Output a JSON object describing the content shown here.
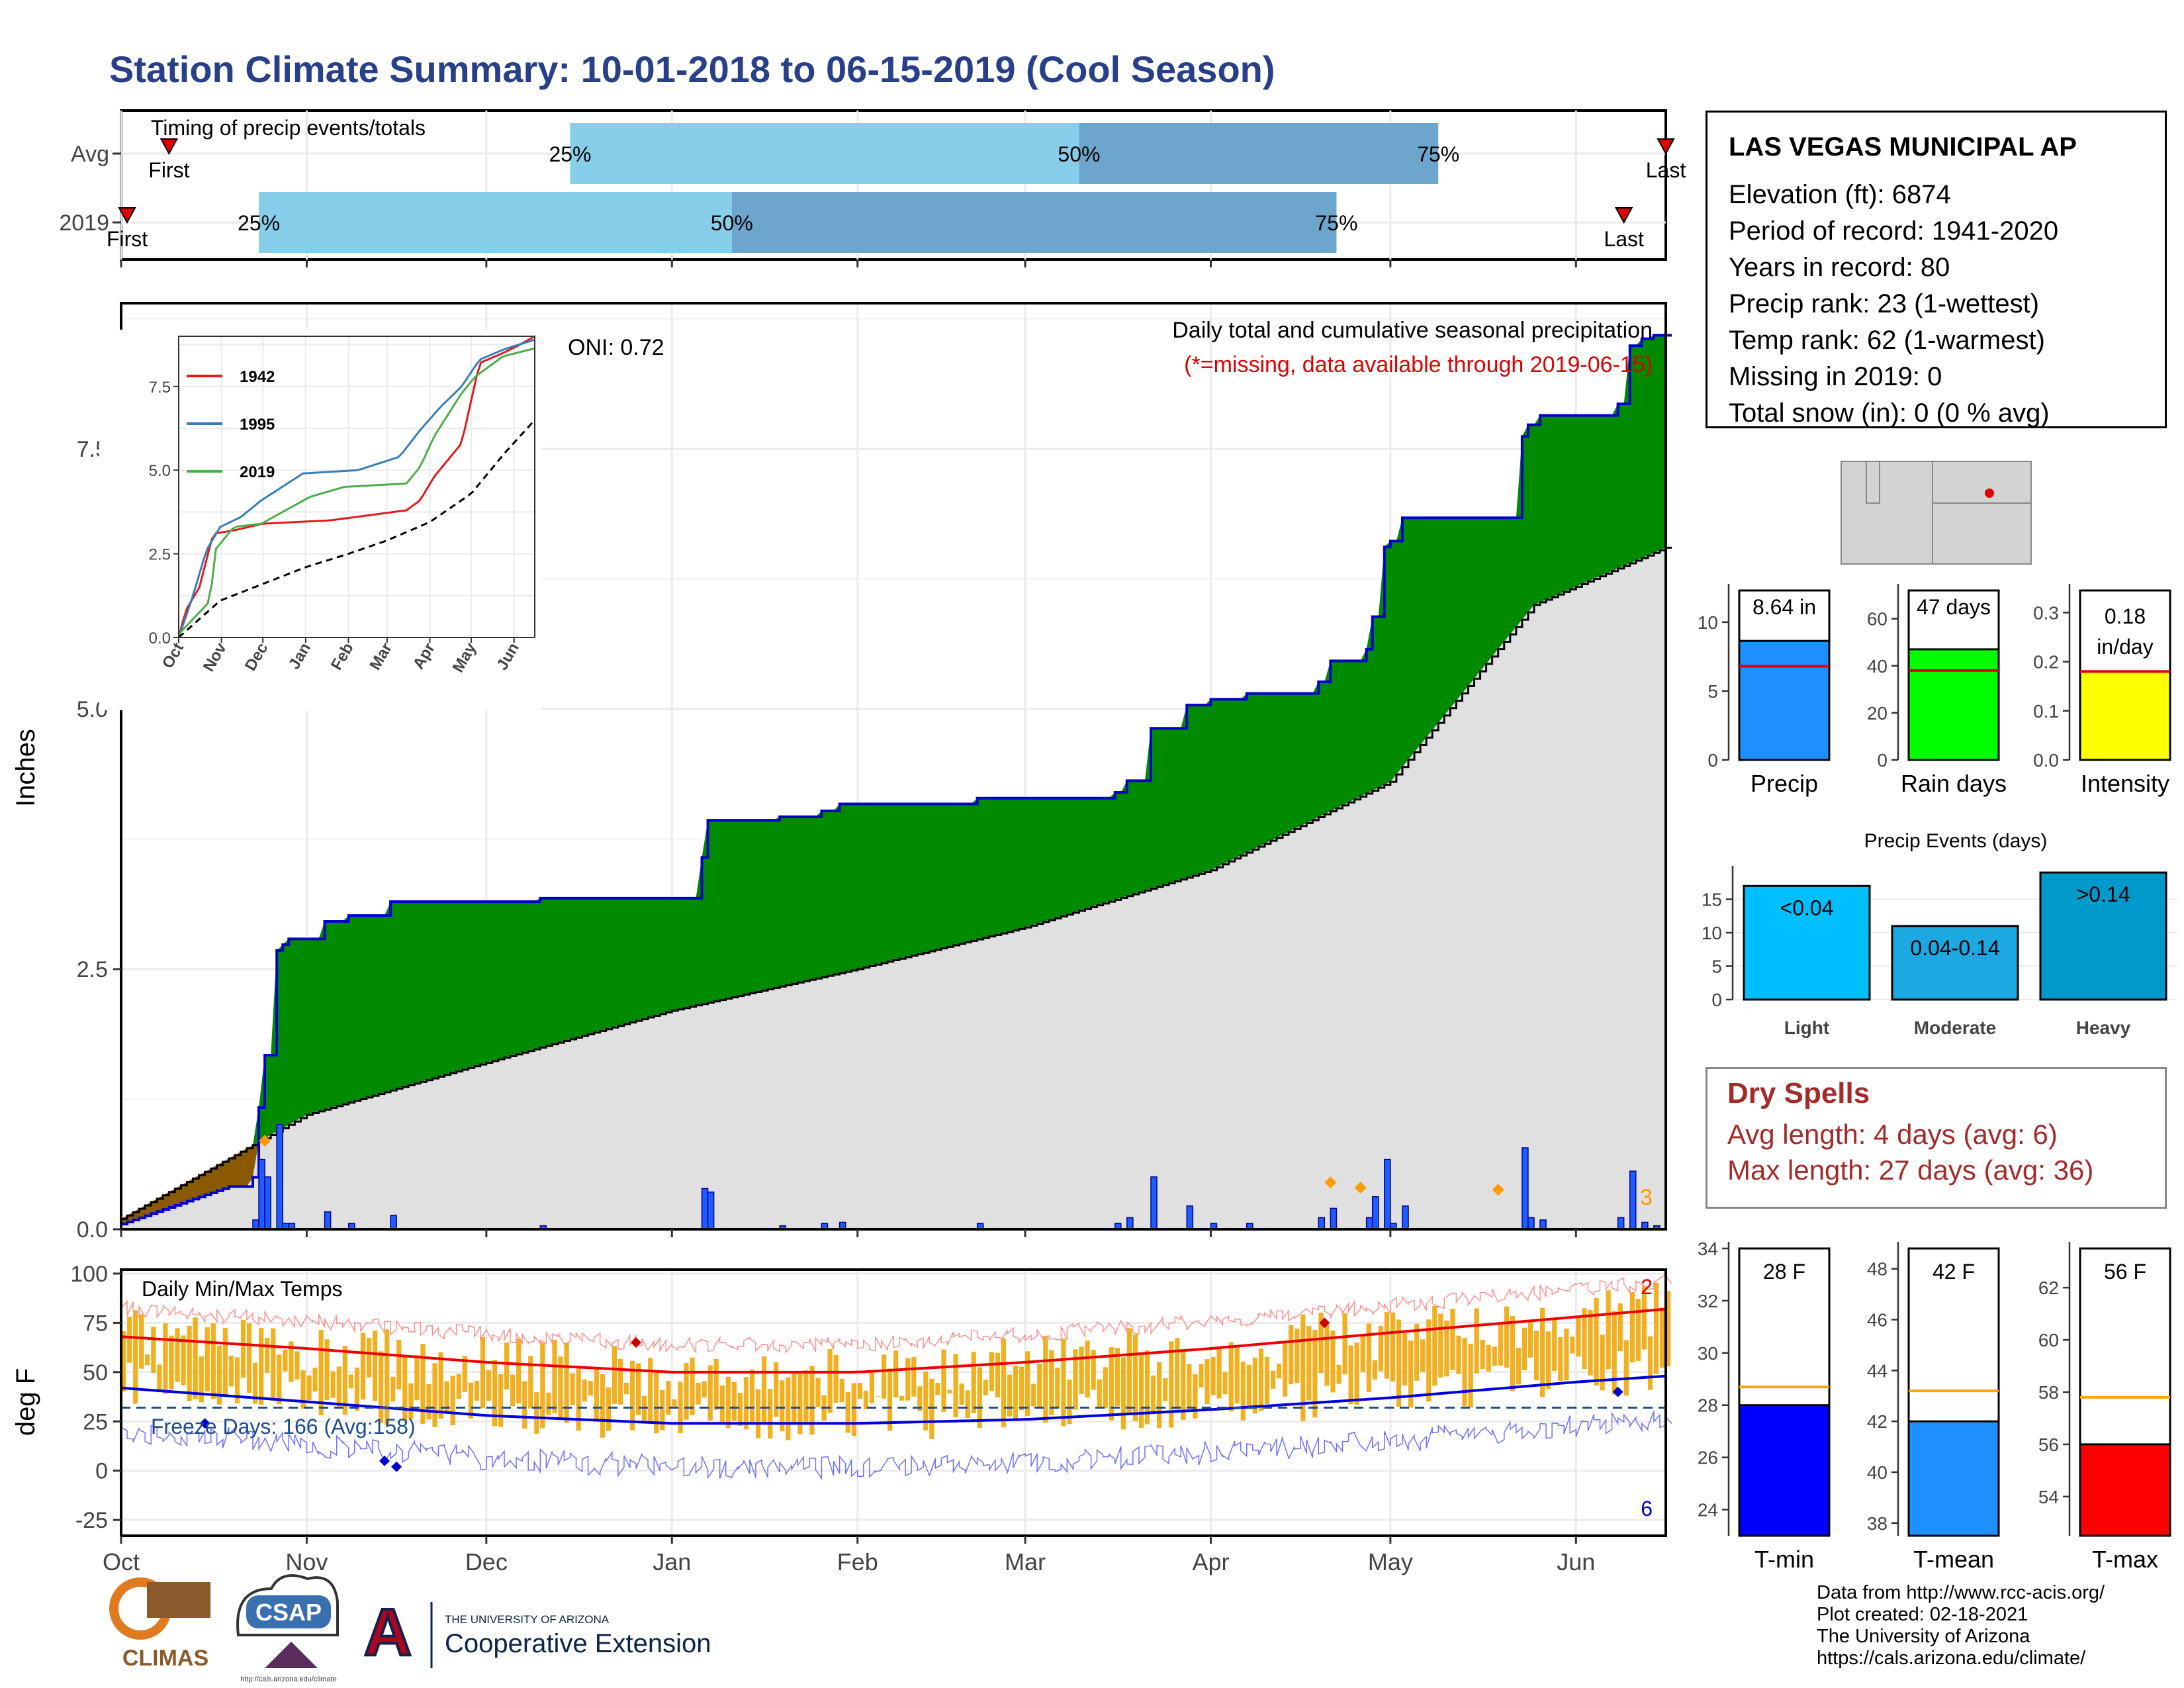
{
  "title": "Station Climate Summary: 10-01-2018 to 06-15-2019 (Cool Season)",
  "timing": {
    "title": "Timing of precip events/totals",
    "rows": [
      {
        "label": "Avg",
        "first_label": "First",
        "last_label": "Last",
        "first_day": 8,
        "last_day": 258,
        "p25_day": 75,
        "p50_day": 160,
        "p75_day": 220
      },
      {
        "label": "2019",
        "first_label": "First",
        "last_label": "Last",
        "first_day": 1,
        "last_day": 251,
        "p25_day": 23,
        "p50_day": 102,
        "p75_day": 203
      }
    ],
    "p25": "25%",
    "p50": "50%",
    "p75": "75%",
    "colors": {
      "light": "#87ceeb",
      "dark": "#6ca6cd",
      "marker": "#e00000"
    }
  },
  "main": {
    "ylabel": "Inches",
    "oni": "ONI: 0.72",
    "legend_line1": "Daily total and cumulative seasonal precipitation",
    "legend_line2": "(*=missing, data available through 2019-06-15)",
    "corner_count": "3",
    "months": [
      "Oct",
      "Nov",
      "Dec",
      "Jan",
      "Feb",
      "Mar",
      "Apr",
      "May",
      "Jun"
    ],
    "yticks": [
      "0.0",
      "2.5",
      "5.0",
      "7.5"
    ],
    "colors": {
      "above": "#008a00",
      "below": "#8b5a00",
      "avg_fill": "#e0e0e0",
      "step": "#0000cc",
      "bar": "#1e5cff",
      "missing": "#ff9a00"
    }
  },
  "inset": {
    "series": [
      {
        "name": "1942",
        "color": "#e41a1c"
      },
      {
        "name": "1995",
        "color": "#377eb8"
      },
      {
        "name": "2019",
        "color": "#4daf4a"
      }
    ],
    "yticks": [
      "0.0",
      "2.5",
      "5.0",
      "7.5"
    ],
    "months": [
      "Oct",
      "Nov",
      "Dec",
      "Jan",
      "Feb",
      "Mar",
      "Apr",
      "May",
      "Jun"
    ]
  },
  "temps": {
    "title": "Daily Min/Max Temps",
    "ylabel": "deg F",
    "yticks": [
      "-25",
      "0",
      "25",
      "50",
      "75",
      "100"
    ],
    "freeze": "Freeze Days: 166 (Avg:158)",
    "count_top": "2",
    "count_bottom": "6",
    "months": [
      "Oct",
      "Nov",
      "Dec",
      "Jan",
      "Feb",
      "Mar",
      "Apr",
      "May",
      "Jun"
    ]
  },
  "station": {
    "name": "LAS VEGAS MUNICIPAL AP",
    "lines": [
      "Elevation (ft): 6874",
      "Period of record: 1941-2020",
      "Years in record: 80",
      "Precip rank: 23 (1-wettest)",
      "Temp rank: 62 (1-warmest)",
      "Missing in 2019: 0",
      "Total snow (in): 0 (0 % avg)"
    ]
  },
  "chart_data": [
    {
      "type": "line",
      "title": "Daily total and cumulative seasonal precipitation",
      "xlabel": "",
      "ylabel": "Inches",
      "ylim": [
        0,
        8.9
      ],
      "x": [
        "Oct",
        "Nov",
        "Dec",
        "Jan",
        "Feb",
        "Mar",
        "Apr",
        "May",
        "Jun",
        "Jun-15"
      ],
      "series": [
        {
          "values": [
            0.3,
            3.3,
            3.45,
            4.15,
            4.5,
            4.55,
            5.9,
            7.2,
            8.4,
            8.64
          ]
        },
        {
          "values": [
            0.1,
            1.1,
            1.6,
            2.1,
            2.5,
            2.9,
            3.45,
            4.3,
            6.0,
            6.55
          ]
        }
      ]
    },
    {
      "type": "bar",
      "title": "",
      "categories": [
        "Precip",
        "Rain days",
        "Intensity"
      ],
      "values": [
        8.64,
        47,
        0.18
      ],
      "avg": [
        6.8,
        38,
        0.18
      ],
      "labels": [
        "8.64 in",
        "47 days",
        "0.18 in/day"
      ],
      "ylims": [
        [
          0,
          12
        ],
        [
          0,
          70
        ],
        [
          0,
          0.35
        ]
      ]
    },
    {
      "type": "bar",
      "title": "Precip Events (days)",
      "categories": [
        "Light",
        "Moderate",
        "Heavy"
      ],
      "values": [
        17,
        11,
        19
      ],
      "labels": [
        "<0.04",
        "0.04-0.14",
        ">0.14"
      ],
      "ylim": [
        0,
        20
      ]
    },
    {
      "type": "bar",
      "title": "",
      "categories": [
        "T-min",
        "T-mean",
        "T-max"
      ],
      "values": [
        28,
        42,
        56
      ],
      "avg": [
        28.7,
        43.2,
        57.8
      ],
      "labels": [
        "28 F",
        "42 F",
        "56 F"
      ],
      "ylims": [
        [
          23,
          34
        ],
        [
          37.5,
          48.8
        ],
        [
          52.5,
          63.5
        ]
      ]
    },
    {
      "type": "line",
      "title": "Daily Min/Max Temps",
      "ylabel": "deg F",
      "ylim": [
        -33,
        102
      ],
      "x": [
        "Oct",
        "Nov",
        "Dec",
        "Jan",
        "Feb",
        "Mar",
        "Apr",
        "May",
        "Jun"
      ],
      "series": [
        {
          "values": [
            68,
            62,
            55,
            50,
            50,
            55,
            62,
            70,
            78
          ]
        },
        {
          "values": [
            42,
            35,
            28,
            24,
            24,
            26,
            31,
            37,
            45
          ]
        }
      ]
    }
  ],
  "bars1": {
    "yticks": [
      [
        0,
        "0"
      ],
      [
        5,
        "5"
      ],
      [
        10,
        "10"
      ]
    ],
    "yticks2": [
      [
        0,
        "0"
      ],
      [
        20,
        "20"
      ],
      [
        40,
        "40"
      ],
      [
        60,
        "60"
      ]
    ],
    "yticks3": [
      [
        0,
        "0.0"
      ],
      [
        0.1,
        "0.1"
      ],
      [
        0.2,
        "0.2"
      ],
      [
        0.3,
        "0.3"
      ]
    ],
    "colors": [
      "#1e90ff",
      "#00ff00",
      "#ffff00"
    ]
  },
  "events": {
    "colors": [
      "#00bfff",
      "#1ca8e0",
      "#0099cc"
    ]
  },
  "bars2": {
    "colors": [
      "#0000ff",
      "#1e90ff",
      "#ff0000"
    ],
    "yticks1": [
      [
        24,
        "24"
      ],
      [
        26,
        "26"
      ],
      [
        28,
        "28"
      ],
      [
        30,
        "30"
      ],
      [
        32,
        "32"
      ],
      [
        34,
        "34"
      ]
    ],
    "yticks2": [
      [
        38,
        "38"
      ],
      [
        40,
        "40"
      ],
      [
        42,
        "42"
      ],
      [
        44,
        "44"
      ],
      [
        46,
        "46"
      ],
      [
        48,
        "48"
      ]
    ],
    "yticks3": [
      [
        54,
        "54"
      ],
      [
        56,
        "56"
      ],
      [
        58,
        "58"
      ],
      [
        60,
        "60"
      ],
      [
        62,
        "62"
      ]
    ]
  },
  "dry": {
    "title": "Dry Spells",
    "lines": [
      "Avg length: 4 days (avg: 6)",
      "Max length: 27 days (avg: 36)"
    ]
  },
  "credits": [
    "Data from http://www.rcc-acis.org/",
    "Plot created: 02-18-2021",
    "The University of Arizona",
    "https://cals.arizona.edu/climate/"
  ],
  "logos": {
    "climas": "CLIMAS",
    "csap": "CSAP",
    "ua_small": "THE UNIVERSITY OF ARIZONA",
    "ua_big": "Cooperative Extension",
    "csap_url": "http://cals.arizona.edu/climate"
  }
}
